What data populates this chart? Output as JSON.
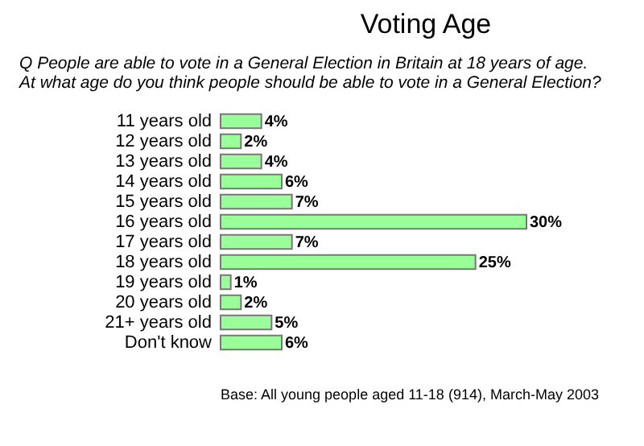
{
  "chart_data": {
    "type": "bar",
    "orientation": "horizontal",
    "title": "Voting Age",
    "subtitle": "Q  People are able to vote in a General Election in Britain at 18 years of age.  At what age do you think people should be able to vote in a General Election?",
    "categories": [
      "11 years old",
      "12 years old",
      "13 years old",
      "14 years old",
      "15 years old",
      "16 years old",
      "17 years old",
      "18 years old",
      "19 years old",
      "20 years old",
      "21+ years old",
      "Don't know"
    ],
    "values": [
      4,
      2,
      4,
      6,
      7,
      30,
      7,
      25,
      1,
      2,
      5,
      6
    ],
    "value_labels": [
      "4%",
      "2%",
      "4%",
      "6%",
      "7%",
      "30%",
      "7%",
      "25%",
      "1%",
      "2%",
      "5%",
      "6%"
    ],
    "color": "#99ff99",
    "annotations": [
      "Base:  All young people aged 11-18 (914), March-May 2003"
    ]
  }
}
